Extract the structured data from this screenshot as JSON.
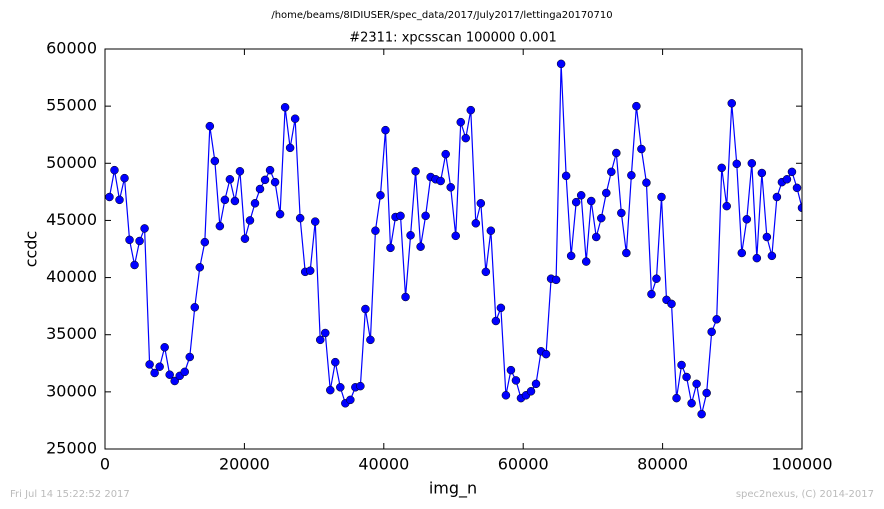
{
  "chart_data": {
    "type": "line",
    "suptitle": "/home/beams/8IDIUSER/spec_data/2017/July2017/lettinga20170710",
    "title": "#2311: xpcsscan 100000 0.001",
    "xlabel": "img_n",
    "ylabel": "ccdc",
    "footer_left": "Fri Jul 14 15:22:52 2017",
    "footer_right": "spec2nexus, (C) 2014-2017",
    "xlim": [
      0,
      100000
    ],
    "xticks": [
      0,
      20000,
      40000,
      60000,
      80000,
      100000
    ],
    "ylim": [
      25000,
      60000
    ],
    "yticks": [
      25000,
      30000,
      35000,
      40000,
      45000,
      50000,
      55000,
      60000
    ],
    "x": [
      640,
      1360,
      2080,
      2800,
      3520,
      4240,
      4960,
      5680,
      6400,
      7120,
      7840,
      8560,
      9280,
      10000,
      10720,
      11440,
      12160,
      12880,
      13600,
      14320,
      15040,
      15760,
      16480,
      17200,
      17920,
      18640,
      19360,
      20080,
      20800,
      21520,
      22240,
      22960,
      23680,
      24400,
      25120,
      25840,
      26560,
      27280,
      28000,
      28720,
      29440,
      30160,
      30880,
      31600,
      32320,
      33040,
      33760,
      34480,
      35200,
      35920,
      36640,
      37360,
      38080,
      38800,
      39520,
      40240,
      40960,
      41680,
      42400,
      43120,
      43840,
      44560,
      45280,
      46000,
      46720,
      47440,
      48160,
      48880,
      49600,
      50320,
      51040,
      51760,
      52480,
      53200,
      53920,
      54640,
      55360,
      56080,
      56800,
      57520,
      58240,
      58960,
      59680,
      60400,
      61120,
      61840,
      62560,
      63280,
      64000,
      64720,
      65440,
      66160,
      66880,
      67600,
      68320,
      69040,
      69760,
      70480,
      71200,
      71920,
      72640,
      73360,
      74080,
      74800,
      75520,
      76240,
      76960,
      77680,
      78400,
      79120,
      79840,
      80560,
      81280,
      82000,
      82720,
      83440,
      84160,
      84880,
      85600,
      86320,
      87040,
      87760,
      88480,
      89200,
      89920,
      90640,
      91360,
      92080,
      92800,
      93520,
      94240,
      94960,
      95680,
      96400,
      97120,
      97840,
      98560,
      99280,
      100000
    ],
    "series": [
      {
        "color": "#0000ff",
        "values": [
          47050,
          49400,
          46800,
          48700,
          43300,
          41100,
          43200,
          44300,
          32400,
          31650,
          32200,
          33900,
          31500,
          30950,
          31400,
          31750,
          33050,
          37400,
          40900,
          43100,
          53250,
          50200,
          44500,
          46800,
          48600,
          46700,
          49300,
          43400,
          45000,
          46500,
          47750,
          48550,
          49400,
          48350,
          45550,
          54900,
          51350,
          53900,
          45200,
          40500,
          40600,
          44900,
          34550,
          35150,
          30150,
          32600,
          30400,
          29000,
          29300,
          30400,
          30500,
          37250,
          34550,
          44100,
          47200,
          52900,
          42600,
          45300,
          45400,
          38300,
          43700,
          49300,
          42700,
          45400,
          48800,
          48600,
          48450,
          50800,
          47900,
          43650,
          53600,
          52200,
          54650,
          44750,
          46500,
          40500,
          44100,
          36200,
          37350,
          29700,
          31900,
          31000,
          29450,
          29700,
          30050,
          30700,
          33550,
          33300,
          39900,
          39800,
          58700,
          48900,
          41900,
          46600,
          47200,
          41400,
          46700,
          43550,
          45200,
          47400,
          49250,
          50900,
          45650,
          42150,
          48950,
          55000,
          51250,
          48300,
          38550,
          39900,
          47050,
          38050,
          37700,
          29450,
          32350,
          31300,
          29000,
          30700,
          28050,
          29900,
          35250,
          36350,
          49600,
          46250,
          55250,
          49950,
          42150,
          45100,
          50000,
          41700,
          49150,
          43550,
          41900,
          47050,
          48350,
          48600,
          49250,
          47850,
          46100
        ]
      }
    ]
  }
}
